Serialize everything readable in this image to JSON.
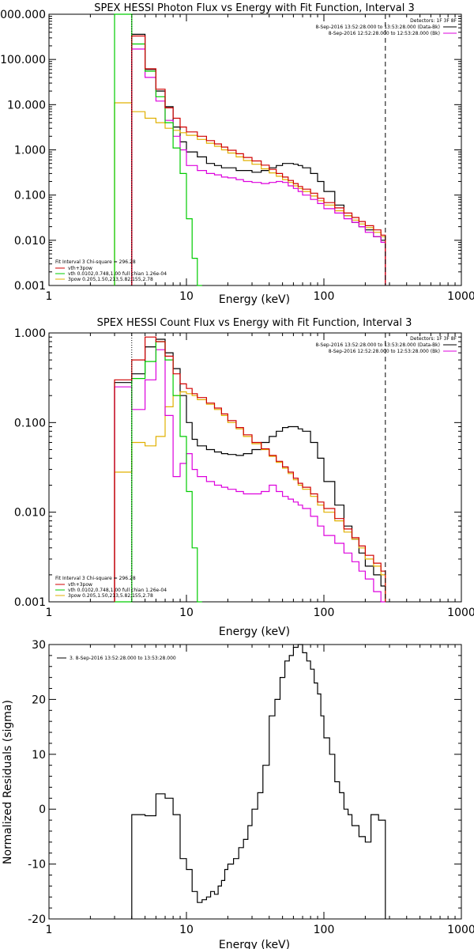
{
  "chart_data": [
    {
      "type": "line",
      "title": "SPEX HESSI Photon Flux vs Energy with Fit Function, Interval 3",
      "xlabel": "Energy (keV)",
      "ylabel": "",
      "xscale": "log",
      "yscale": "log",
      "xlim": [
        1,
        1000
      ],
      "ylim": [
        0.001,
        1000
      ],
      "xticks": [
        "1",
        "10",
        "100",
        "1000"
      ],
      "yticks": [
        "0.001",
        "0.010",
        "0.100",
        "1.000",
        "10.000",
        "100.000",
        "1000.000"
      ],
      "detectors": "Detectors: 1F 3F 8F",
      "time_labels": [
        "8-Sep-2016 13:52:28.000 to 13:53:28.000 (Data-Bk)",
        "8-Sep-2016 12:52:28.000 to 12:53:28.000 (Bk)"
      ],
      "fit_legend": [
        "Fit Interval 3   Chi-square = 296.28",
        "vth+3pow",
        "vth 0.0102,0.748,1.00  full chian 1.26e-04",
        "3pow 0.205,1.50,213,5.82,155,2.78"
      ],
      "fit_colors": [
        "#d00000",
        "#00cc00",
        "#e0b000"
      ],
      "dashed_x": 280,
      "dotted_x": 4,
      "series": [
        {
          "color": "#000000",
          "edges": [
            4,
            5,
            6,
            7,
            8,
            9,
            10,
            12,
            14,
            16,
            18,
            20,
            23,
            26,
            30,
            35,
            40,
            45,
            50,
            55,
            60,
            65,
            70,
            80,
            90,
            100,
            120,
            140,
            160,
            180,
            200,
            230,
            260,
            280
          ],
          "values": [
            360,
            60,
            20,
            9,
            3.2,
            1.5,
            0.9,
            0.7,
            0.5,
            0.45,
            0.4,
            0.4,
            0.35,
            0.35,
            0.32,
            0.35,
            0.4,
            0.45,
            0.5,
            0.5,
            0.48,
            0.45,
            0.4,
            0.3,
            0.2,
            0.12,
            0.06,
            0.035,
            0.025,
            0.02,
            0.017,
            0.012,
            0.01
          ]
        },
        {
          "color": "#e0b000",
          "edges": [
            3,
            4,
            5,
            6,
            7,
            8,
            9,
            10,
            12,
            14,
            16,
            18,
            20,
            23,
            26,
            30,
            35,
            40,
            45,
            50,
            55,
            60,
            65,
            70,
            80,
            90,
            100,
            120,
            140,
            160,
            180,
            200,
            230,
            260,
            280
          ],
          "values": [
            11,
            7,
            5,
            4,
            3,
            2.7,
            2.4,
            2.1,
            1.7,
            1.4,
            1.2,
            1,
            0.85,
            0.7,
            0.58,
            0.48,
            0.38,
            0.31,
            0.26,
            0.22,
            0.19,
            0.16,
            0.14,
            0.12,
            0.095,
            0.075,
            0.06,
            0.045,
            0.035,
            0.028,
            0.023,
            0.019,
            0.015,
            0.012
          ]
        },
        {
          "color": "#dd00dd",
          "edges": [
            4,
            5,
            6,
            7,
            8,
            9,
            10,
            12,
            14,
            16,
            18,
            20,
            23,
            26,
            30,
            35,
            40,
            45,
            50,
            55,
            60,
            65,
            70,
            80,
            90,
            100,
            120,
            140,
            160,
            180,
            200,
            230,
            260,
            280
          ],
          "values": [
            170,
            40,
            12,
            4.5,
            2,
            1,
            0.45,
            0.35,
            0.3,
            0.28,
            0.25,
            0.24,
            0.22,
            0.2,
            0.19,
            0.18,
            0.19,
            0.2,
            0.19,
            0.16,
            0.14,
            0.12,
            0.1,
            0.08,
            0.065,
            0.05,
            0.04,
            0.03,
            0.025,
            0.02,
            0.015,
            0.012,
            0.009
          ]
        },
        {
          "color": "#00cc00",
          "edges": [
            3,
            4,
            5,
            6,
            7,
            8,
            9,
            10,
            11,
            12,
            13
          ],
          "values": [
            1000,
            220,
            55,
            15,
            4,
            1.1,
            0.3,
            0.03,
            0.004,
            0.0008
          ]
        },
        {
          "color": "#d00000",
          "edges": [
            4,
            5,
            6,
            7,
            8,
            9,
            10,
            12,
            14,
            16,
            18,
            20,
            23,
            26,
            30,
            35,
            40,
            45,
            50,
            55,
            60,
            65,
            70,
            80,
            90,
            100,
            120,
            140,
            160,
            180,
            200,
            230,
            260,
            280
          ],
          "values": [
            330,
            62,
            22,
            8.5,
            5,
            3.2,
            2.5,
            2,
            1.6,
            1.35,
            1.15,
            0.98,
            0.82,
            0.68,
            0.57,
            0.46,
            0.37,
            0.3,
            0.25,
            0.21,
            0.18,
            0.155,
            0.135,
            0.11,
            0.085,
            0.068,
            0.052,
            0.04,
            0.032,
            0.026,
            0.021,
            0.017,
            0.013
          ]
        }
      ]
    },
    {
      "type": "line",
      "title": "SPEX HESSI Count Flux vs Energy with Fit Function, Interval 3",
      "xlabel": "Energy (keV)",
      "ylabel": "",
      "xscale": "log",
      "yscale": "log",
      "xlim": [
        1,
        1000
      ],
      "ylim": [
        0.001,
        1
      ],
      "xticks": [
        "1",
        "10",
        "100",
        "1000"
      ],
      "yticks": [
        "0.001",
        "0.010",
        "0.100",
        "1.000"
      ],
      "detectors": "Detectors: 1F 3F 8F",
      "time_labels": [
        "8-Sep-2016 13:52:28.000 to 13:53:28.000 (Data-Bk)",
        "8-Sep-2016 12:52:28.000 to 12:53:28.000 (Bk)"
      ],
      "fit_legend": [
        "Fit Interval 3   Chi-square = 296.28",
        "vth+3pow",
        "vth 0.0102,0.748,1.00  full chian 1.26e-04",
        "3pow 0.205,1.50,213,5.82,155,2.78"
      ],
      "fit_colors": [
        "#d00000",
        "#00cc00",
        "#e0b000"
      ],
      "dashed_x": 280,
      "dotted_x": 4,
      "series": [
        {
          "color": "#000000",
          "edges": [
            3,
            4,
            5,
            6,
            7,
            8,
            9,
            10,
            11,
            12,
            14,
            16,
            18,
            20,
            23,
            26,
            30,
            35,
            40,
            45,
            50,
            55,
            60,
            65,
            70,
            80,
            90,
            100,
            120,
            140,
            160,
            180,
            200,
            230,
            260,
            280
          ],
          "values": [
            0.28,
            0.35,
            0.7,
            0.85,
            0.6,
            0.4,
            0.2,
            0.1,
            0.065,
            0.055,
            0.05,
            0.047,
            0.045,
            0.044,
            0.043,
            0.045,
            0.05,
            0.06,
            0.07,
            0.08,
            0.088,
            0.09,
            0.09,
            0.085,
            0.08,
            0.06,
            0.04,
            0.022,
            0.012,
            0.007,
            0.005,
            0.0035,
            0.0025,
            0.002,
            0.0015
          ]
        },
        {
          "color": "#e0b000",
          "edges": [
            3,
            4,
            5,
            6,
            7,
            8,
            9,
            10,
            11,
            12,
            14,
            16,
            18,
            20,
            23,
            26,
            30,
            35,
            40,
            45,
            50,
            55,
            60,
            65,
            70,
            80,
            90,
            100,
            120,
            140,
            160,
            180,
            200,
            230,
            260,
            280
          ],
          "values": [
            0.028,
            0.06,
            0.055,
            0.07,
            0.15,
            0.2,
            0.22,
            0.21,
            0.2,
            0.18,
            0.16,
            0.14,
            0.12,
            0.1,
            0.085,
            0.07,
            0.058,
            0.05,
            0.042,
            0.036,
            0.031,
            0.027,
            0.023,
            0.02,
            0.018,
            0.015,
            0.012,
            0.01,
            0.008,
            0.006,
            0.005,
            0.004,
            0.003,
            0.0025,
            0.002
          ]
        },
        {
          "color": "#dd00dd",
          "edges": [
            3,
            4,
            5,
            6,
            7,
            8,
            9,
            10,
            11,
            12,
            14,
            16,
            18,
            20,
            23,
            26,
            30,
            35,
            40,
            45,
            50,
            55,
            60,
            65,
            70,
            80,
            90,
            100,
            120,
            140,
            160,
            180,
            200,
            230,
            260,
            280
          ],
          "values": [
            0.25,
            0.14,
            0.3,
            0.65,
            0.12,
            0.025,
            0.035,
            0.045,
            0.03,
            0.025,
            0.022,
            0.02,
            0.019,
            0.018,
            0.017,
            0.016,
            0.016,
            0.017,
            0.02,
            0.017,
            0.015,
            0.014,
            0.013,
            0.012,
            0.011,
            0.009,
            0.007,
            0.0055,
            0.0045,
            0.0035,
            0.0028,
            0.0022,
            0.0018,
            0.0013,
            0.001
          ]
        },
        {
          "color": "#00cc00",
          "edges": [
            3,
            4,
            5,
            6,
            7,
            8,
            9,
            10,
            11,
            12,
            13
          ],
          "values": [
            0.001,
            0.31,
            0.48,
            0.8,
            0.5,
            0.2,
            0.07,
            0.017,
            0.004,
            0.0008
          ]
        },
        {
          "color": "#d00000",
          "edges": [
            3,
            4,
            5,
            6,
            7,
            8,
            9,
            10,
            11,
            12,
            14,
            16,
            18,
            20,
            23,
            26,
            30,
            35,
            40,
            45,
            50,
            55,
            60,
            65,
            70,
            80,
            90,
            100,
            120,
            140,
            160,
            180,
            200,
            230,
            260,
            280
          ],
          "values": [
            0.3,
            0.5,
            0.9,
            0.8,
            0.55,
            0.35,
            0.27,
            0.24,
            0.21,
            0.19,
            0.165,
            0.145,
            0.125,
            0.105,
            0.088,
            0.073,
            0.06,
            0.051,
            0.043,
            0.037,
            0.032,
            0.028,
            0.024,
            0.021,
            0.019,
            0.016,
            0.013,
            0.011,
            0.0085,
            0.0065,
            0.0052,
            0.0042,
            0.0033,
            0.0027,
            0.0022
          ]
        }
      ]
    },
    {
      "type": "line",
      "title": "",
      "xlabel": "Energy (keV)",
      "ylabel": "Normalized Residuals (sigma)",
      "xscale": "log",
      "yscale": "linear",
      "xlim": [
        1,
        1000
      ],
      "ylim": [
        -20,
        30
      ],
      "xticks": [
        "1",
        "10",
        "100",
        "1000"
      ],
      "yticks": [
        "-20",
        "-10",
        "0",
        "10",
        "20",
        "30"
      ],
      "legend": "3.  8-Sep-2016 13:52:28.000 to 13:53:28.000",
      "series": [
        {
          "color": "#000000",
          "edges": [
            4,
            5,
            6,
            7,
            8,
            9,
            10,
            11,
            12,
            13,
            14,
            15,
            16,
            17,
            18,
            19,
            20,
            22,
            24,
            26,
            28,
            30,
            33,
            36,
            40,
            44,
            48,
            52,
            56,
            60,
            65,
            70,
            75,
            80,
            85,
            90,
            95,
            100,
            110,
            120,
            130,
            140,
            150,
            160,
            180,
            200,
            220,
            250,
            280
          ],
          "values": [
            -1,
            -1.2,
            2.8,
            2,
            -1,
            -9,
            -11,
            -15,
            -17,
            -16.5,
            -16,
            -15,
            -15.5,
            -14,
            -13,
            -11,
            -10,
            -9,
            -7,
            -5.5,
            -3,
            0,
            3,
            8,
            17,
            20,
            24,
            27,
            28,
            29.5,
            30,
            28.5,
            27,
            25.5,
            23,
            21,
            17,
            13,
            10,
            5,
            3,
            0,
            -1,
            -3,
            -5,
            -6,
            -1,
            -2
          ]
        }
      ]
    }
  ]
}
